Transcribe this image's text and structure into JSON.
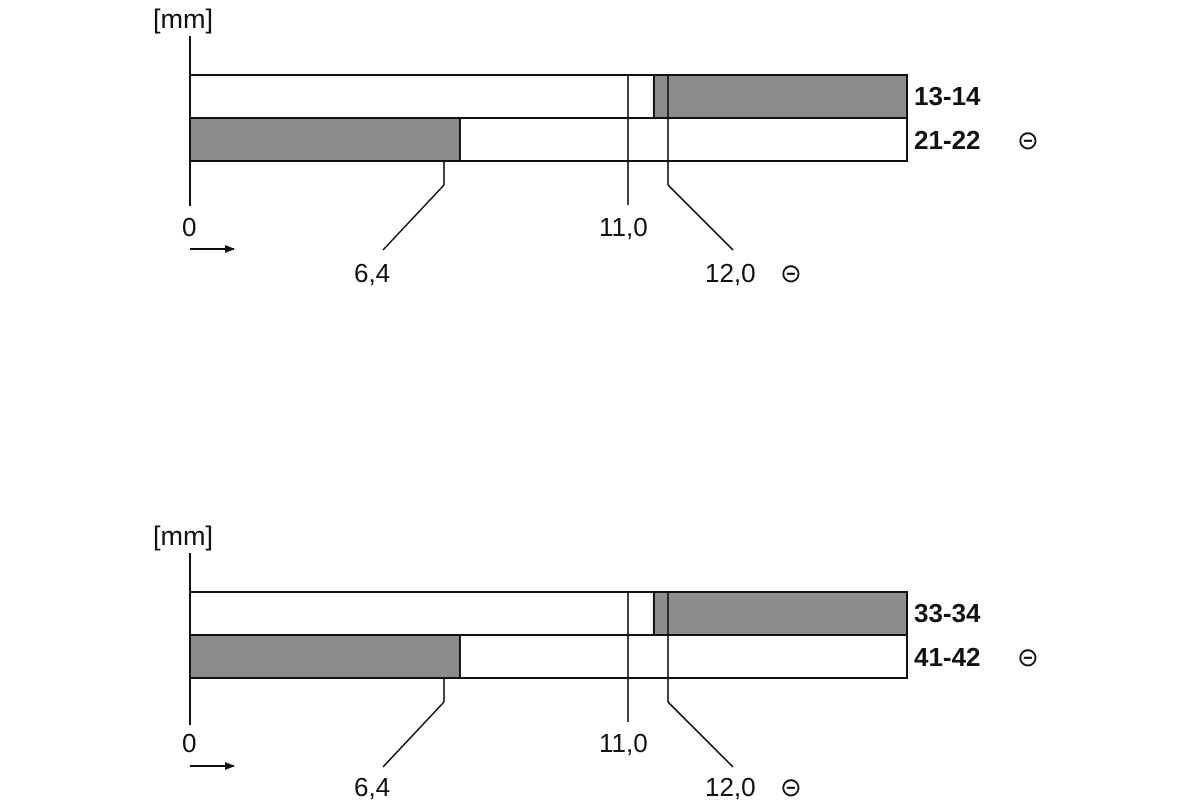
{
  "colors": {
    "closed": "#8c8c8c",
    "open": "#ffffff",
    "line": "#111111"
  },
  "diagrams": [
    {
      "unit_label": "[mm]",
      "origin_label": "0",
      "ticks": [
        {
          "label": "6,4",
          "value": 6.4,
          "symbol": ""
        },
        {
          "label": "11,0",
          "value": 11.0,
          "symbol": ""
        },
        {
          "label": "12,0",
          "value": 12.0,
          "symbol": "⊝"
        }
      ],
      "rows": [
        {
          "label": "13-14",
          "symbol": "",
          "closed_from": 11.0,
          "closed_to": 17.0
        },
        {
          "label": "21-22",
          "symbol": "⊝",
          "closed_from": 0,
          "closed_to": 6.4
        }
      ]
    },
    {
      "unit_label": "[mm]",
      "origin_label": "0",
      "ticks": [
        {
          "label": "6,4",
          "value": 6.4,
          "symbol": ""
        },
        {
          "label": "11,0",
          "value": 11.0,
          "symbol": ""
        },
        {
          "label": "12,0",
          "value": 12.0,
          "symbol": "⊝"
        }
      ],
      "rows": [
        {
          "label": "33-34",
          "symbol": "",
          "closed_from": 11.0,
          "closed_to": 17.0
        },
        {
          "label": "41-42",
          "symbol": "⊝",
          "closed_from": 0,
          "closed_to": 6.4
        }
      ]
    }
  ],
  "scale_max_mm": 17.0
}
